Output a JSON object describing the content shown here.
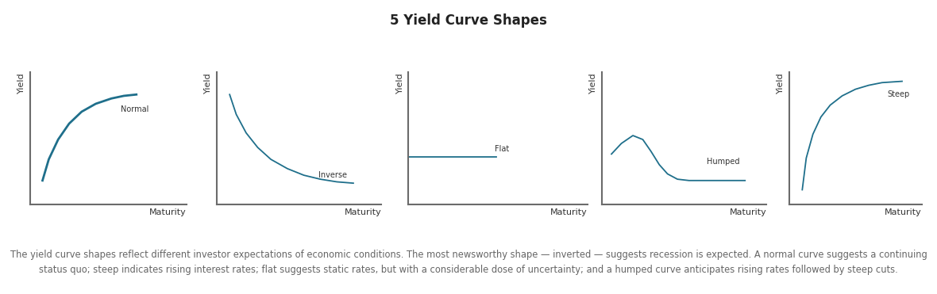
{
  "title": "5 Yield Curve Shapes",
  "caption": "The yield curve shapes reflect different investor expectations of economic conditions. The most newsworthy shape — inverted — suggests recession is expected. A normal curve suggests a continuing status quo; steep indicates rising interest rates; flat suggests static rates, but with a considerable dose of uncertainty; and a humped curve anticipates rising rates followed by steep cuts.",
  "chart_data": [
    {
      "type": "line",
      "annotation": "Normal",
      "x_label": "Maturity",
      "y_label": "Yield",
      "x": [
        0.8,
        1.2,
        1.8,
        2.5,
        3.3,
        4.2,
        5.2,
        6.0,
        6.8
      ],
      "values": [
        1.8,
        3.4,
        4.9,
        6.1,
        7.0,
        7.6,
        8.0,
        8.2,
        8.3
      ],
      "color": "#1f6f8b",
      "xlim": [
        0,
        10
      ],
      "ylim": [
        0,
        10
      ],
      "xticks": [],
      "yticks": [],
      "tick_labels": false
    },
    {
      "type": "line",
      "annotation": "Inverse",
      "x_label": "Maturity",
      "y_label": "Yield",
      "x": [
        0.8,
        1.2,
        1.8,
        2.5,
        3.3,
        4.3,
        5.3,
        6.3,
        7.3,
        8.3
      ],
      "values": [
        8.3,
        6.8,
        5.4,
        4.3,
        3.4,
        2.7,
        2.2,
        1.9,
        1.7,
        1.6
      ],
      "color": "#1f6f8b",
      "xlim": [
        0,
        10
      ],
      "ylim": [
        0,
        10
      ],
      "xticks": [],
      "yticks": [],
      "tick_labels": false
    },
    {
      "type": "line",
      "annotation": "Flat",
      "x_label": "Maturity",
      "y_label": "Yield",
      "x": [
        0.0,
        4.9
      ],
      "values": [
        3.6,
        3.6
      ],
      "color": "#1f6f8b",
      "xlim": [
        0,
        10
      ],
      "ylim": [
        0,
        10
      ],
      "xticks": [],
      "yticks": [],
      "tick_labels": false
    },
    {
      "type": "line",
      "annotation": "Humped",
      "x_label": "Maturity",
      "y_label": "Yield",
      "x": [
        0.6,
        1.2,
        1.9,
        2.5,
        3.0,
        3.5,
        4.0,
        4.6,
        5.3,
        6.2,
        7.5,
        8.7
      ],
      "values": [
        3.8,
        4.6,
        5.2,
        4.9,
        4.0,
        3.0,
        2.3,
        1.9,
        1.8,
        1.8,
        1.8,
        1.8
      ],
      "color": "#1f6f8b",
      "xlim": [
        0,
        10
      ],
      "ylim": [
        0,
        10
      ],
      "xticks": [],
      "yticks": [],
      "tick_labels": false
    },
    {
      "type": "line",
      "annotation": "Steep",
      "x_label": "Maturity",
      "y_label": "Yield",
      "x": [
        1.0,
        1.3,
        1.8,
        2.4,
        3.1,
        4.0,
        5.0,
        6.0,
        7.0,
        8.5
      ],
      "values": [
        1.1,
        3.5,
        5.3,
        6.6,
        7.5,
        8.2,
        8.7,
        9.0,
        9.2,
        9.3
      ],
      "color": "#1f6f8b",
      "xlim": [
        0,
        10
      ],
      "ylim": [
        0,
        10
      ],
      "xticks": [],
      "yticks": [],
      "tick_labels": false
    }
  ]
}
